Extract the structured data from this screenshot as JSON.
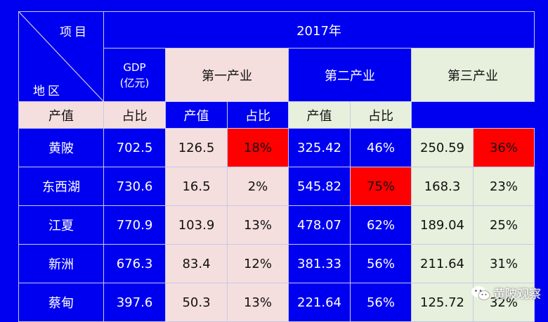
{
  "header": {
    "item_label": "项目",
    "region_label": "地区",
    "year": "2017年",
    "gdp_label": "GDP",
    "gdp_unit": "(亿元)",
    "industries": [
      "第一产业",
      "第二产业",
      "第三产业"
    ],
    "output_label": "产值",
    "share_label": "占比"
  },
  "rows": [
    {
      "region": "黄陂",
      "gdp": "702.5",
      "i1_value": "126.5",
      "i1_share": "18%",
      "i2_value": "325.42",
      "i2_share": "46%",
      "i3_value": "250.59",
      "i3_share": "36%"
    },
    {
      "region": "东西湖",
      "gdp": "730.6",
      "i1_value": "16.5",
      "i1_share": "2%",
      "i2_value": "545.82",
      "i2_share": "75%",
      "i3_value": "168.3",
      "i3_share": "23%"
    },
    {
      "region": "江夏",
      "gdp": "770.9",
      "i1_value": "103.9",
      "i1_share": "13%",
      "i2_value": "478.07",
      "i2_share": "62%",
      "i3_value": "189.04",
      "i3_share": "25%"
    },
    {
      "region": "新洲",
      "gdp": "676.3",
      "i1_value": "83.4",
      "i1_share": "12%",
      "i2_value": "381.33",
      "i2_share": "56%",
      "i3_value": "211.64",
      "i3_share": "31%"
    },
    {
      "region": "蔡甸",
      "gdp": "397.6",
      "i1_value": "50.3",
      "i1_share": "13%",
      "i2_value": "221.64",
      "i2_share": "56%",
      "i3_value": "125.72",
      "i3_share": "32%"
    }
  ],
  "highlight_color": "#ff0000",
  "watermark": {
    "brand": "黄陂观察",
    "icon": "wechat-icon"
  }
}
